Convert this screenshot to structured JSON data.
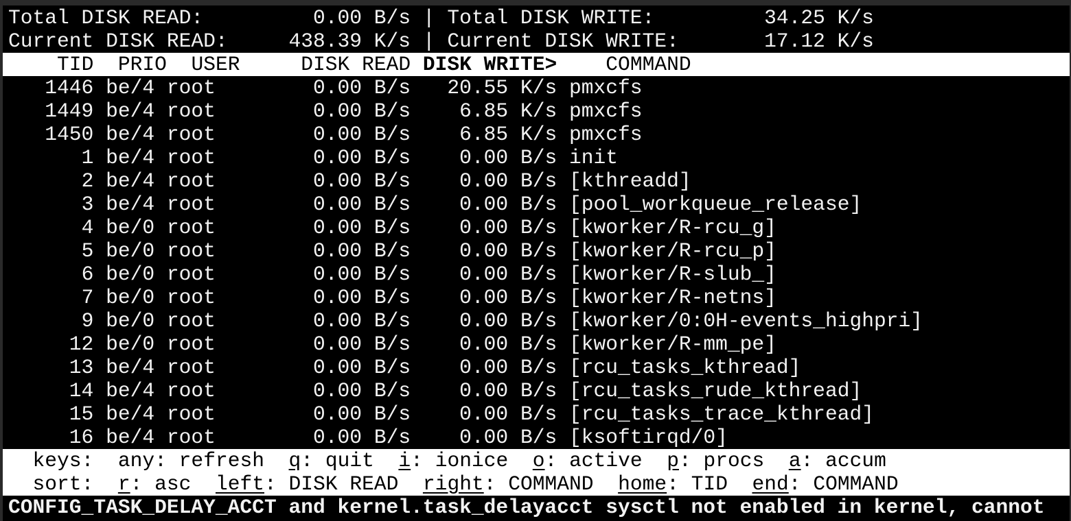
{
  "summary": {
    "total_read_label": "Total DISK READ:",
    "total_read": "0.00 B/s",
    "total_write_label": "Total DISK WRITE:",
    "total_write": "34.25 K/s",
    "current_read_label": "Current DISK READ:",
    "current_read": "438.39 K/s",
    "current_write_label": "Current DISK WRITE:",
    "current_write": "17.12 K/s"
  },
  "columns": {
    "tid": "TID",
    "prio": "PRIO",
    "user": "USER",
    "read": "DISK READ",
    "write": "DISK WRITE>",
    "command": "COMMAND",
    "sorted": "write"
  },
  "rows": [
    {
      "tid": "1446",
      "prio": "be/4",
      "user": "root",
      "read": "0.00 B/s",
      "write": "20.55 K/s",
      "command": "pmxcfs"
    },
    {
      "tid": "1449",
      "prio": "be/4",
      "user": "root",
      "read": "0.00 B/s",
      "write": "6.85 K/s",
      "command": "pmxcfs"
    },
    {
      "tid": "1450",
      "prio": "be/4",
      "user": "root",
      "read": "0.00 B/s",
      "write": "6.85 K/s",
      "command": "pmxcfs"
    },
    {
      "tid": "1",
      "prio": "be/4",
      "user": "root",
      "read": "0.00 B/s",
      "write": "0.00 B/s",
      "command": "init"
    },
    {
      "tid": "2",
      "prio": "be/4",
      "user": "root",
      "read": "0.00 B/s",
      "write": "0.00 B/s",
      "command": "[kthreadd]"
    },
    {
      "tid": "3",
      "prio": "be/4",
      "user": "root",
      "read": "0.00 B/s",
      "write": "0.00 B/s",
      "command": "[pool_workqueue_release]"
    },
    {
      "tid": "4",
      "prio": "be/0",
      "user": "root",
      "read": "0.00 B/s",
      "write": "0.00 B/s",
      "command": "[kworker/R-rcu_g]"
    },
    {
      "tid": "5",
      "prio": "be/0",
      "user": "root",
      "read": "0.00 B/s",
      "write": "0.00 B/s",
      "command": "[kworker/R-rcu_p]"
    },
    {
      "tid": "6",
      "prio": "be/0",
      "user": "root",
      "read": "0.00 B/s",
      "write": "0.00 B/s",
      "command": "[kworker/R-slub_]"
    },
    {
      "tid": "7",
      "prio": "be/0",
      "user": "root",
      "read": "0.00 B/s",
      "write": "0.00 B/s",
      "command": "[kworker/R-netns]"
    },
    {
      "tid": "9",
      "prio": "be/0",
      "user": "root",
      "read": "0.00 B/s",
      "write": "0.00 B/s",
      "command": "[kworker/0:0H-events_highpri]"
    },
    {
      "tid": "12",
      "prio": "be/0",
      "user": "root",
      "read": "0.00 B/s",
      "write": "0.00 B/s",
      "command": "[kworker/R-mm_pe]"
    },
    {
      "tid": "13",
      "prio": "be/4",
      "user": "root",
      "read": "0.00 B/s",
      "write": "0.00 B/s",
      "command": "[rcu_tasks_kthread]"
    },
    {
      "tid": "14",
      "prio": "be/4",
      "user": "root",
      "read": "0.00 B/s",
      "write": "0.00 B/s",
      "command": "[rcu_tasks_rude_kthread]"
    },
    {
      "tid": "15",
      "prio": "be/4",
      "user": "root",
      "read": "0.00 B/s",
      "write": "0.00 B/s",
      "command": "[rcu_tasks_trace_kthread]"
    },
    {
      "tid": "16",
      "prio": "be/4",
      "user": "root",
      "read": "0.00 B/s",
      "write": "0.00 B/s",
      "command": "[ksoftirqd/0]"
    }
  ],
  "footer": {
    "keys_label": "keys:",
    "keys": [
      {
        "key": "any",
        "label": "refresh",
        "underline": false
      },
      {
        "key": "q",
        "label": "quit",
        "underline": true
      },
      {
        "key": "i",
        "label": "ionice",
        "underline": true
      },
      {
        "key": "o",
        "label": "active",
        "underline": true
      },
      {
        "key": "p",
        "label": "procs",
        "underline": true
      },
      {
        "key": "a",
        "label": "accum",
        "underline": true
      }
    ],
    "sort_label": "sort:",
    "sort": [
      {
        "key": "r",
        "label": "asc",
        "underline": true
      },
      {
        "key": "left",
        "label": "DISK READ",
        "underline": true
      },
      {
        "key": "right",
        "label": "COMMAND",
        "underline": true
      },
      {
        "key": "home",
        "label": "TID",
        "underline": true
      },
      {
        "key": "end",
        "label": "COMMAND",
        "underline": true
      }
    ]
  },
  "status_message": "CONFIG_TASK_DELAY_ACCT and kernel.task_delayacct sysctl not enabled in kernel, cannot",
  "colors": {
    "background": "#000000",
    "foreground": "#f2f2f2",
    "inverse_bg": "#ffffff"
  }
}
